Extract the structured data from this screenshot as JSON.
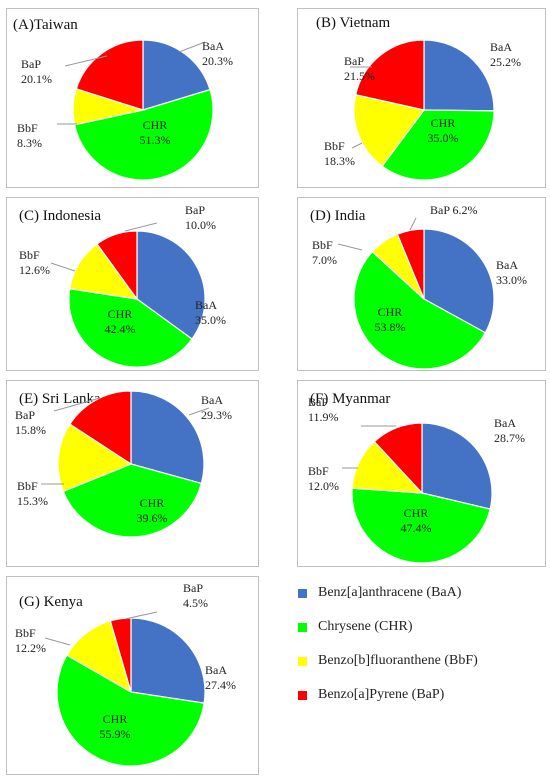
{
  "chart_data": [
    {
      "type": "pie",
      "title": "(A)Taiwan",
      "categories": [
        "BaA",
        "CHR",
        "BbF",
        "BaP"
      ],
      "values": [
        20.3,
        51.3,
        8.3,
        20.1
      ],
      "labels": [
        "20.3%",
        "51.3%",
        "8.3%",
        "20.1%"
      ]
    },
    {
      "type": "pie",
      "title": "(B) Vietnam",
      "categories": [
        "BaA",
        "CHR",
        "BbF",
        "BaP"
      ],
      "values": [
        25.2,
        35.0,
        18.3,
        21.5
      ],
      "labels": [
        "25.2%",
        "35.0%",
        "18.3%",
        "21.5%"
      ]
    },
    {
      "type": "pie",
      "title": "(C) Indonesia",
      "categories": [
        "BaA",
        "CHR",
        "BbF",
        "BaP"
      ],
      "values": [
        35.0,
        42.4,
        12.6,
        10.0
      ],
      "labels": [
        "35.0%",
        "42.4%",
        "12.6%",
        "10.0%"
      ]
    },
    {
      "type": "pie",
      "title": "(D) India",
      "categories": [
        "BaA",
        "CHR",
        "BbF",
        "BaP"
      ],
      "values": [
        33.0,
        53.8,
        7.0,
        6.2
      ],
      "labels": [
        "33.0%",
        "53.8%",
        "7.0%",
        "6.2%"
      ]
    },
    {
      "type": "pie",
      "title": "(E) Sri Lanka",
      "categories": [
        "BaA",
        "CHR",
        "BbF",
        "BaP"
      ],
      "values": [
        29.3,
        39.6,
        15.3,
        15.8
      ],
      "labels": [
        "29.3%",
        "39.6%",
        "15.3%",
        "15.8%"
      ]
    },
    {
      "type": "pie",
      "title": "(F) Myanmar",
      "categories": [
        "BaA",
        "CHR",
        "BbF",
        "BaP"
      ],
      "values": [
        28.7,
        47.4,
        12.0,
        11.9
      ],
      "labels": [
        "28.7%",
        "47.4%",
        "12.0%",
        "11.9%"
      ]
    },
    {
      "type": "pie",
      "title": "(G) Kenya",
      "categories": [
        "BaA",
        "CHR",
        "BbF",
        "BaP"
      ],
      "values": [
        27.4,
        55.9,
        12.2,
        4.5
      ],
      "labels": [
        "27.4%",
        "55.9%",
        "12.2%",
        "4.5%"
      ]
    }
  ],
  "legend": [
    {
      "label": "Benz[a]anthracene (BaA)",
      "color": "#4472c4"
    },
    {
      "label": "Chrysene (CHR)",
      "color": "#00ff00"
    },
    {
      "label": "Benzo[b]fluoranthene (BbF)",
      "color": "#ffff00"
    },
    {
      "label": "Benzo[a]Pyrene (BaP)",
      "color": "#ff0000"
    }
  ]
}
